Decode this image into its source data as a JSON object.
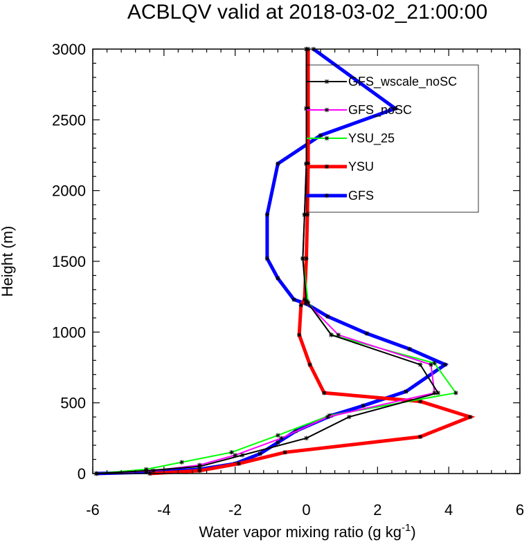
{
  "chart_data": {
    "type": "line",
    "title": "ACBLQV valid at 2018-03-02_21:00:00",
    "xlabel": "Water vapor mixing ratio (g kg",
    "xlabel_sup": "-1",
    "xlabel_end": ")",
    "ylabel": "Height (m)",
    "xlim": [
      -6,
      6
    ],
    "ylim": [
      0,
      3000
    ],
    "xticks": [
      "-6",
      "-4",
      "-2",
      "0",
      "2",
      "4",
      "6"
    ],
    "yticks": [
      "0",
      "500",
      "1000",
      "1500",
      "2000",
      "2500",
      "3000"
    ],
    "legend_position": "top-right",
    "series": [
      {
        "name": "GFS",
        "color": "#0000ff",
        "width": 5,
        "x": [
          -5.9,
          -4.5,
          -3.0,
          -2.0,
          -1.3,
          -0.8,
          -0.3,
          0.7,
          1.6,
          2.8,
          3.9,
          2.9,
          1.7,
          0.6,
          0.0,
          -0.35,
          -0.8,
          -1.1,
          -1.1,
          -0.8,
          0.4,
          2.5,
          0.2
        ],
        "y": [
          0,
          10,
          30,
          70,
          140,
          220,
          300,
          410,
          480,
          580,
          770,
          880,
          990,
          1110,
          1200,
          1230,
          1380,
          1520,
          1830,
          2190,
          2390,
          2580,
          3000
        ]
      },
      {
        "name": "YSU",
        "color": "#ff0000",
        "width": 5,
        "x": [
          -4.4,
          -3.0,
          -1.9,
          -0.6,
          3.2,
          4.6,
          3.2,
          0.5,
          0.1,
          -0.2,
          -0.15,
          -0.05,
          0.0,
          0.03,
          0.05,
          0.05,
          0.05
        ],
        "y": [
          0,
          20,
          70,
          150,
          260,
          400,
          510,
          570,
          770,
          980,
          1190,
          1230,
          1520,
          1830,
          2190,
          2580,
          3000
        ]
      },
      {
        "name": "YSU_25",
        "color": "#00ff00",
        "width": 2,
        "x": [
          -5.9,
          -4.5,
          -3.5,
          -2.1,
          -0.8,
          0.65,
          4.2,
          3.6,
          0.7,
          0.05,
          -0.1,
          -0.05,
          0.0,
          0.0,
          0.0
        ],
        "y": [
          0,
          30,
          80,
          150,
          270,
          410,
          570,
          780,
          980,
          1210,
          1520,
          1830,
          2190,
          2580,
          3000
        ]
      },
      {
        "name": "GFS_noSC",
        "color": "#ff00ff",
        "width": 2,
        "x": [
          -5.9,
          -4.3,
          -3.0,
          -2.0,
          -0.7,
          0.6,
          3.6,
          3.5,
          0.9,
          0.0,
          -0.1,
          -0.05,
          0.0,
          0.0,
          0.0
        ],
        "y": [
          0,
          20,
          60,
          130,
          250,
          400,
          570,
          770,
          980,
          1210,
          1520,
          1830,
          2190,
          2580,
          3000
        ]
      },
      {
        "name": "GFS_wscale_noSC",
        "color": "#000000",
        "width": 2,
        "x": [
          -5.9,
          -4.5,
          -3.0,
          -1.8,
          0.0,
          1.2,
          3.7,
          3.2,
          0.7,
          0.0,
          -0.1,
          -0.05,
          0.0,
          0.0,
          0.0
        ],
        "y": [
          0,
          20,
          50,
          130,
          250,
          400,
          570,
          770,
          980,
          1220,
          1520,
          1830,
          2190,
          2580,
          3000
        ]
      }
    ],
    "legend_order": [
      "GFS_wscale_noSC",
      "GFS_noSC",
      "YSU_25",
      "YSU",
      "GFS"
    ]
  }
}
